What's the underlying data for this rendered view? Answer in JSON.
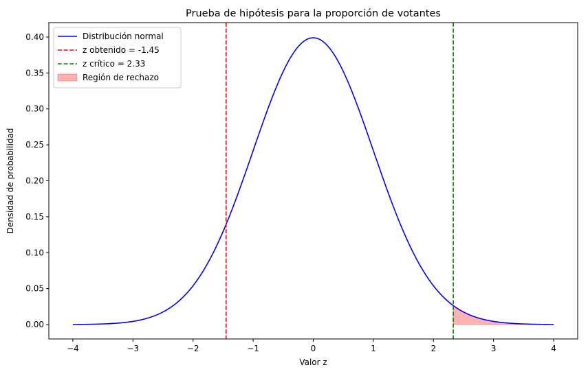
{
  "chart_data": {
    "type": "line",
    "title": "Prueba de hipótesis para la proporción de votantes",
    "xlabel": "Valor z",
    "ylabel": "Densidad de probabilidad",
    "xlim": [
      -4.4,
      4.4
    ],
    "ylim": [
      -0.02,
      0.42
    ],
    "x_ticks": [
      -4,
      -3,
      -2,
      -1,
      0,
      1,
      2,
      3,
      4
    ],
    "x_tick_labels": [
      "−4",
      "−3",
      "−2",
      "−1",
      "0",
      "1",
      "2",
      "3",
      "4"
    ],
    "y_ticks": [
      0.0,
      0.05,
      0.1,
      0.15,
      0.2,
      0.25,
      0.3,
      0.35,
      0.4
    ],
    "y_tick_labels": [
      "0.00",
      "0.05",
      "0.10",
      "0.15",
      "0.20",
      "0.25",
      "0.30",
      "0.35",
      "0.40"
    ],
    "grid": false,
    "legend_position": "top-left",
    "series": [
      {
        "name": "Distribución normal",
        "kind": "curve",
        "distribution": "standard normal",
        "x_range": [
          -4,
          4
        ],
        "color": "#0000ff"
      },
      {
        "name": "z obtenido = -1.45",
        "kind": "vline",
        "x": -1.45,
        "color": "#ff0000",
        "style": "dashed"
      },
      {
        "name": "z crítico = 2.33",
        "kind": "vline",
        "x": 2.33,
        "color": "#008000",
        "style": "dashed"
      },
      {
        "name": "Región de rechazo",
        "kind": "fill",
        "x_range": [
          2.33,
          4
        ],
        "color": "#ff0000",
        "alpha": 0.3
      }
    ]
  }
}
